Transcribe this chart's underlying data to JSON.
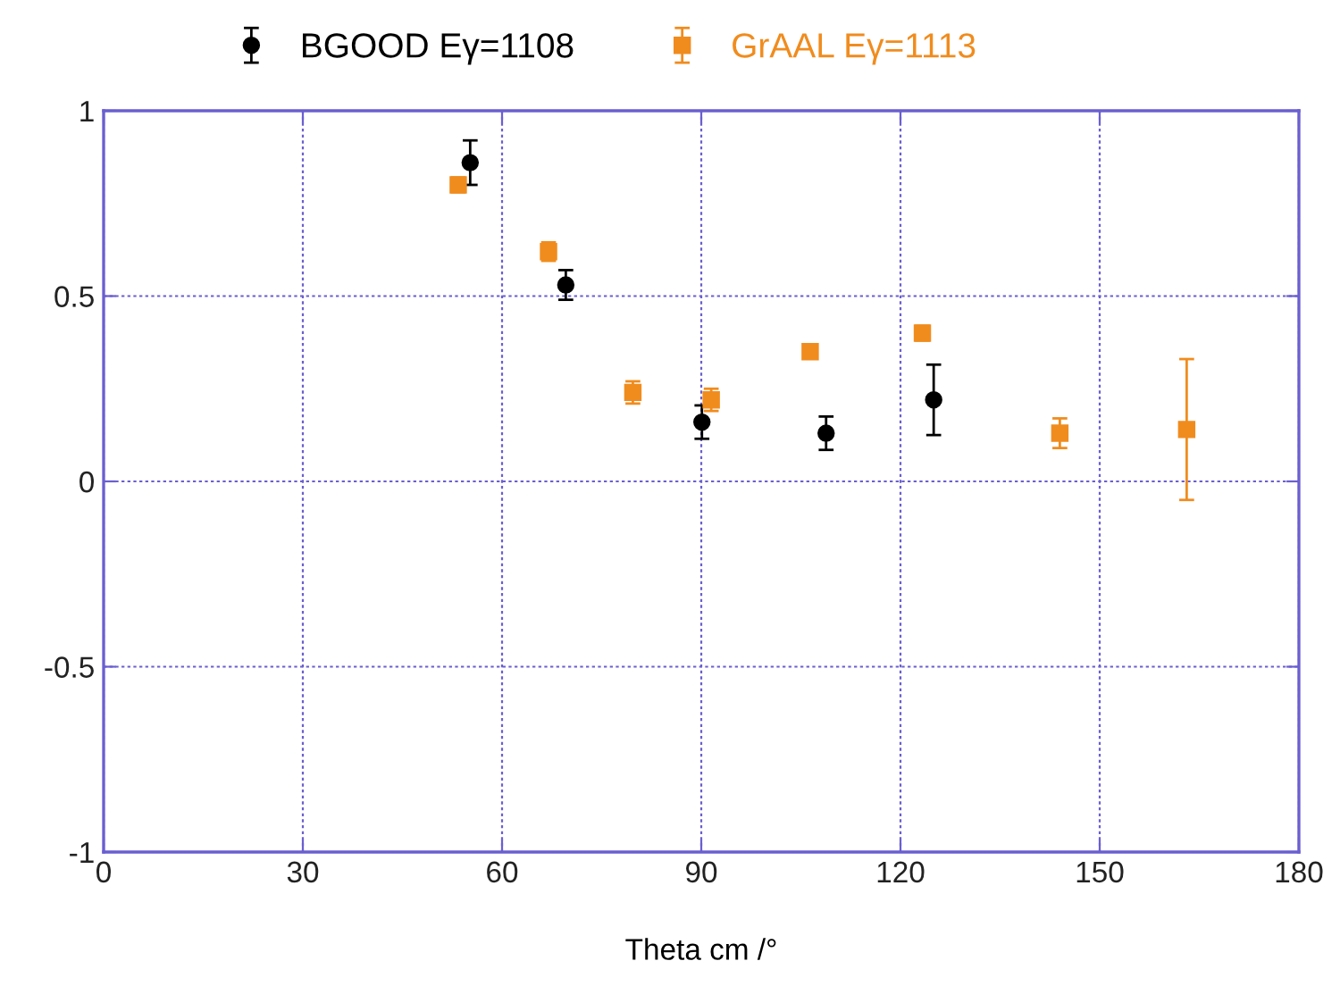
{
  "chart_data": {
    "type": "scatter",
    "xlabel": "Theta cm /°",
    "xlim": [
      0,
      180
    ],
    "xticks": [
      0,
      30,
      60,
      90,
      120,
      150,
      180
    ],
    "ylim": [
      -1,
      1
    ],
    "yticks": [
      -1,
      -0.5,
      0,
      0.5,
      1
    ],
    "grid": true,
    "legend": "top left",
    "series": [
      {
        "name": "BGOOD Eγ=1108",
        "color": "#000000",
        "marker": "circle",
        "x": [
          55.2,
          69.6,
          90.1,
          108.8,
          125.0
        ],
        "values": [
          0.86,
          0.53,
          0.16,
          0.13,
          0.22
        ],
        "errors": [
          0.06,
          0.04,
          0.045,
          0.045,
          0.095
        ]
      },
      {
        "name": "GrAAL Eγ=1113",
        "color": "#f08c1e",
        "marker": "square",
        "x": [
          53.4,
          67.0,
          79.7,
          91.5,
          106.4,
          123.3,
          144.0,
          163.1
        ],
        "values": [
          0.8,
          0.62,
          0.24,
          0.22,
          0.35,
          0.4,
          0.13,
          0.14
        ],
        "errors": [
          0.02,
          0.025,
          0.03,
          0.03,
          0.015,
          0.02,
          0.04,
          0.19
        ]
      }
    ]
  }
}
